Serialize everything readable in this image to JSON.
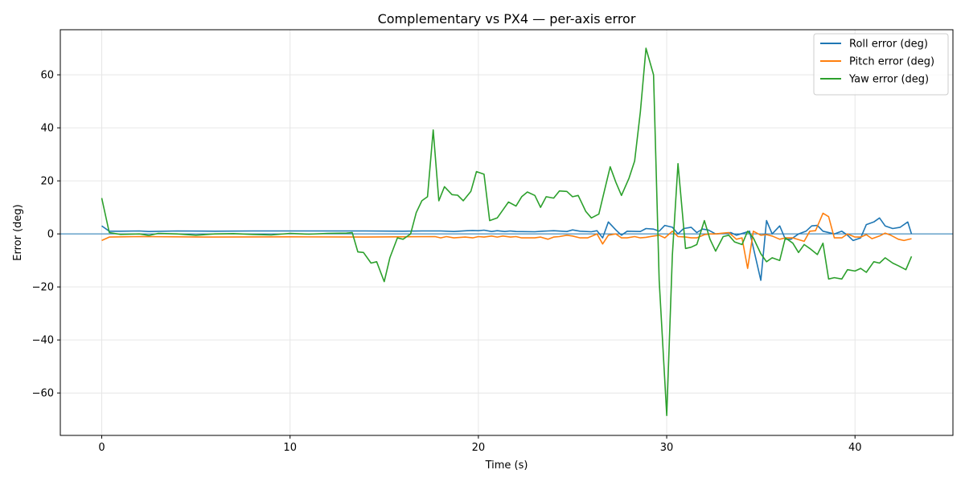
{
  "chart_data": {
    "type": "line",
    "title": "Complementary vs PX4 — per-axis error",
    "xlabel": "Time (s)",
    "ylabel": "Error (deg)",
    "xlim": [
      -2.2,
      45.2
    ],
    "ylim": [
      -76,
      77
    ],
    "xticks": [
      0,
      10,
      20,
      30,
      40
    ],
    "yticks": [
      -60,
      -40,
      -20,
      0,
      20,
      40,
      60
    ],
    "xtick_labels": [
      "0",
      "10",
      "20",
      "30",
      "40"
    ],
    "ytick_labels": [
      "−60",
      "−40",
      "−20",
      "0",
      "20",
      "40",
      "60"
    ],
    "grid": true,
    "legend_position": "top-right",
    "reference_line": {
      "y": 0,
      "color": "#1f77b4"
    },
    "series": [
      {
        "name": "Roll error (deg)",
        "color": "#1f77b4",
        "points": [
          [
            0,
            3
          ],
          [
            0.4,
            1
          ],
          [
            1,
            1
          ],
          [
            2,
            1.1
          ],
          [
            2.5,
            0.9
          ],
          [
            4,
            1.1
          ],
          [
            6,
            1
          ],
          [
            8,
            1.1
          ],
          [
            10,
            1.1
          ],
          [
            12,
            1.1
          ],
          [
            14,
            1.1
          ],
          [
            16,
            1
          ],
          [
            17,
            1.1
          ],
          [
            18,
            1.1
          ],
          [
            18.7,
            0.9
          ],
          [
            19.4,
            1.2
          ],
          [
            19.7,
            1.3
          ],
          [
            20,
            1.2
          ],
          [
            20.3,
            1.4
          ],
          [
            20.7,
            0.9
          ],
          [
            21,
            1.2
          ],
          [
            21.4,
            0.9
          ],
          [
            21.7,
            1.1
          ],
          [
            22,
            0.9
          ],
          [
            23,
            0.8
          ],
          [
            23.4,
            1
          ],
          [
            23.7,
            1.1
          ],
          [
            24,
            1.2
          ],
          [
            24.7,
            0.9
          ],
          [
            25,
            1.5
          ],
          [
            25.4,
            1
          ],
          [
            26,
            0.8
          ],
          [
            26.3,
            1.2
          ],
          [
            26.6,
            -1.5
          ],
          [
            26.9,
            4.5
          ],
          [
            27.3,
            1.5
          ],
          [
            27.6,
            -0.5
          ],
          [
            27.9,
            1
          ],
          [
            28.6,
            0.9
          ],
          [
            28.9,
            2
          ],
          [
            29.3,
            1.8
          ],
          [
            29.6,
            1
          ],
          [
            29.9,
            3.2
          ],
          [
            30.3,
            2.5
          ],
          [
            30.6,
            0
          ],
          [
            30.9,
            2
          ],
          [
            31.3,
            2.5
          ],
          [
            31.6,
            0.5
          ],
          [
            31.9,
            1.8
          ],
          [
            32.2,
            1.5
          ],
          [
            32.6,
            0
          ],
          [
            33,
            0.2
          ],
          [
            33.4,
            0.5
          ],
          [
            33.7,
            -0.5
          ],
          [
            34.4,
            1
          ],
          [
            35,
            -17.5
          ],
          [
            35.3,
            5
          ],
          [
            35.6,
            0
          ],
          [
            36,
            3
          ],
          [
            36.3,
            -2
          ],
          [
            36.6,
            -2
          ],
          [
            37,
            0
          ],
          [
            37.4,
            1
          ],
          [
            37.7,
            3
          ],
          [
            38,
            3.2
          ],
          [
            38.3,
            1
          ],
          [
            38.9,
            0
          ],
          [
            39.3,
            1
          ],
          [
            39.6,
            -0.5
          ],
          [
            39.9,
            -2.5
          ],
          [
            40.3,
            -1.5
          ],
          [
            40.6,
            3.5
          ],
          [
            41,
            4.5
          ],
          [
            41.3,
            6
          ],
          [
            41.6,
            3
          ],
          [
            42,
            2
          ],
          [
            42.4,
            2.5
          ],
          [
            42.8,
            4.5
          ],
          [
            43,
            0
          ]
        ]
      },
      {
        "name": "Pitch error (deg)",
        "color": "#ff7f0e",
        "points": [
          [
            0,
            -2.5
          ],
          [
            0.4,
            -1.2
          ],
          [
            2,
            -1
          ],
          [
            6,
            -1.2
          ],
          [
            10,
            -1.1
          ],
          [
            14,
            -1.2
          ],
          [
            17.7,
            -1
          ],
          [
            18,
            -1.5
          ],
          [
            18.3,
            -1
          ],
          [
            18.7,
            -1.5
          ],
          [
            19.3,
            -1.2
          ],
          [
            19.7,
            -1.5
          ],
          [
            20,
            -1
          ],
          [
            20.3,
            -1.2
          ],
          [
            20.7,
            -0.8
          ],
          [
            21,
            -1.2
          ],
          [
            21.3,
            -0.8
          ],
          [
            21.7,
            -1.2
          ],
          [
            22,
            -1
          ],
          [
            22.3,
            -1.5
          ],
          [
            23,
            -1.5
          ],
          [
            23.3,
            -1.2
          ],
          [
            23.7,
            -2
          ],
          [
            24,
            -1.2
          ],
          [
            24.3,
            -1
          ],
          [
            24.7,
            -0.5
          ],
          [
            25,
            -0.8
          ],
          [
            25.4,
            -1.5
          ],
          [
            25.8,
            -1.5
          ],
          [
            26.3,
            0
          ],
          [
            26.6,
            -3.8
          ],
          [
            26.9,
            -0.5
          ],
          [
            27.3,
            0
          ],
          [
            27.6,
            -1.5
          ],
          [
            27.9,
            -1.5
          ],
          [
            28.3,
            -1
          ],
          [
            28.6,
            -1.5
          ],
          [
            28.9,
            -1.3
          ],
          [
            29.3,
            -0.8
          ],
          [
            29.6,
            -0.5
          ],
          [
            29.9,
            -1.5
          ],
          [
            30.3,
            1
          ],
          [
            30.6,
            -1
          ],
          [
            31,
            -1.2
          ],
          [
            31.3,
            -1.5
          ],
          [
            31.6,
            -1.5
          ],
          [
            32,
            -0.3
          ],
          [
            32.3,
            0
          ],
          [
            32.6,
            0
          ],
          [
            33,
            0.3
          ],
          [
            33.3,
            0.5
          ],
          [
            33.7,
            -2
          ],
          [
            34,
            -1.5
          ],
          [
            34.3,
            -13
          ],
          [
            34.6,
            1
          ],
          [
            35,
            -0.5
          ],
          [
            35.3,
            -0.3
          ],
          [
            35.6,
            -0.8
          ],
          [
            36,
            -2
          ],
          [
            36.3,
            -1.5
          ],
          [
            36.7,
            -1.5
          ],
          [
            37.3,
            -2.8
          ],
          [
            37.6,
            1
          ],
          [
            37.9,
            1.2
          ],
          [
            38.3,
            7.8
          ],
          [
            38.6,
            6.5
          ],
          [
            38.9,
            -1.5
          ],
          [
            39.3,
            -1.5
          ],
          [
            39.6,
            0
          ],
          [
            40,
            -1.2
          ],
          [
            40.3,
            -1.2
          ],
          [
            40.6,
            -0.3
          ],
          [
            40.9,
            -1.8
          ],
          [
            41.3,
            -0.8
          ],
          [
            41.6,
            0.3
          ],
          [
            41.9,
            -0.5
          ],
          [
            42.3,
            -2
          ],
          [
            42.6,
            -2.5
          ],
          [
            43,
            -1.8
          ]
        ]
      },
      {
        "name": "Yaw error (deg)",
        "color": "#2ca02c",
        "points": [
          [
            0,
            13.5
          ],
          [
            0.4,
            0.5
          ],
          [
            1,
            -0.2
          ],
          [
            2,
            0
          ],
          [
            2.5,
            -0.6
          ],
          [
            3,
            0.2
          ],
          [
            4,
            0
          ],
          [
            5,
            -0.5
          ],
          [
            6,
            0
          ],
          [
            7,
            0.1
          ],
          [
            8,
            -0.2
          ],
          [
            9,
            -0.4
          ],
          [
            10,
            0.2
          ],
          [
            11,
            -0.1
          ],
          [
            12,
            0.2
          ],
          [
            13,
            0.3
          ],
          [
            13.3,
            0.5
          ],
          [
            13.6,
            -6.8
          ],
          [
            13.9,
            -7
          ],
          [
            14.3,
            -11
          ],
          [
            14.6,
            -10.5
          ],
          [
            15,
            -18
          ],
          [
            15.3,
            -9
          ],
          [
            15.7,
            -1.5
          ],
          [
            16,
            -2
          ],
          [
            16.4,
            0
          ],
          [
            16.7,
            8
          ],
          [
            17,
            12.5
          ],
          [
            17.3,
            14
          ],
          [
            17.6,
            39.2
          ],
          [
            17.9,
            12.5
          ],
          [
            18.2,
            17.8
          ],
          [
            18.6,
            14.8
          ],
          [
            18.9,
            14.6
          ],
          [
            19.2,
            12.5
          ],
          [
            19.6,
            16
          ],
          [
            19.9,
            23.5
          ],
          [
            20.3,
            22.5
          ],
          [
            20.6,
            5
          ],
          [
            21,
            6
          ],
          [
            21.3,
            9
          ],
          [
            21.6,
            12
          ],
          [
            22,
            10.5
          ],
          [
            22.3,
            14
          ],
          [
            22.6,
            15.8
          ],
          [
            23,
            14.5
          ],
          [
            23.3,
            10
          ],
          [
            23.6,
            14
          ],
          [
            24,
            13.5
          ],
          [
            24.3,
            16.2
          ],
          [
            24.7,
            16
          ],
          [
            25,
            14
          ],
          [
            25.3,
            14.5
          ],
          [
            25.7,
            8.5
          ],
          [
            26,
            6
          ],
          [
            26.4,
            7.5
          ],
          [
            26.7,
            16.5
          ],
          [
            27,
            25.3
          ],
          [
            27.3,
            19.5
          ],
          [
            27.6,
            14.5
          ],
          [
            28,
            21
          ],
          [
            28.3,
            27.5
          ],
          [
            28.6,
            46
          ],
          [
            28.9,
            70
          ],
          [
            29.3,
            60
          ],
          [
            29.6,
            -17.5
          ],
          [
            30,
            -68.5
          ],
          [
            30.3,
            -8
          ],
          [
            30.6,
            26.5
          ],
          [
            31,
            -5.5
          ],
          [
            31.3,
            -5
          ],
          [
            31.6,
            -4
          ],
          [
            32,
            5
          ],
          [
            32.3,
            -2
          ],
          [
            32.6,
            -6.5
          ],
          [
            33,
            -1
          ],
          [
            33.3,
            -0.5
          ],
          [
            33.6,
            -3
          ],
          [
            34,
            -4
          ],
          [
            34.3,
            1
          ],
          [
            34.6,
            -1.5
          ],
          [
            35,
            -7.5
          ],
          [
            35.3,
            -10.5
          ],
          [
            35.6,
            -9
          ],
          [
            36,
            -10
          ],
          [
            36.3,
            -1.5
          ],
          [
            36.7,
            -3.5
          ],
          [
            37,
            -7
          ],
          [
            37.3,
            -4
          ],
          [
            37.6,
            -5.5
          ],
          [
            38,
            -7.8
          ],
          [
            38.3,
            -3.5
          ],
          [
            38.6,
            -17
          ],
          [
            38.9,
            -16.5
          ],
          [
            39.3,
            -17
          ],
          [
            39.6,
            -13.5
          ],
          [
            40,
            -14
          ],
          [
            40.3,
            -13
          ],
          [
            40.6,
            -14.5
          ],
          [
            41,
            -10.5
          ],
          [
            41.3,
            -11
          ],
          [
            41.6,
            -9
          ],
          [
            42,
            -11
          ],
          [
            42.3,
            -12
          ],
          [
            42.7,
            -13.5
          ],
          [
            43,
            -8.5
          ]
        ]
      }
    ]
  }
}
